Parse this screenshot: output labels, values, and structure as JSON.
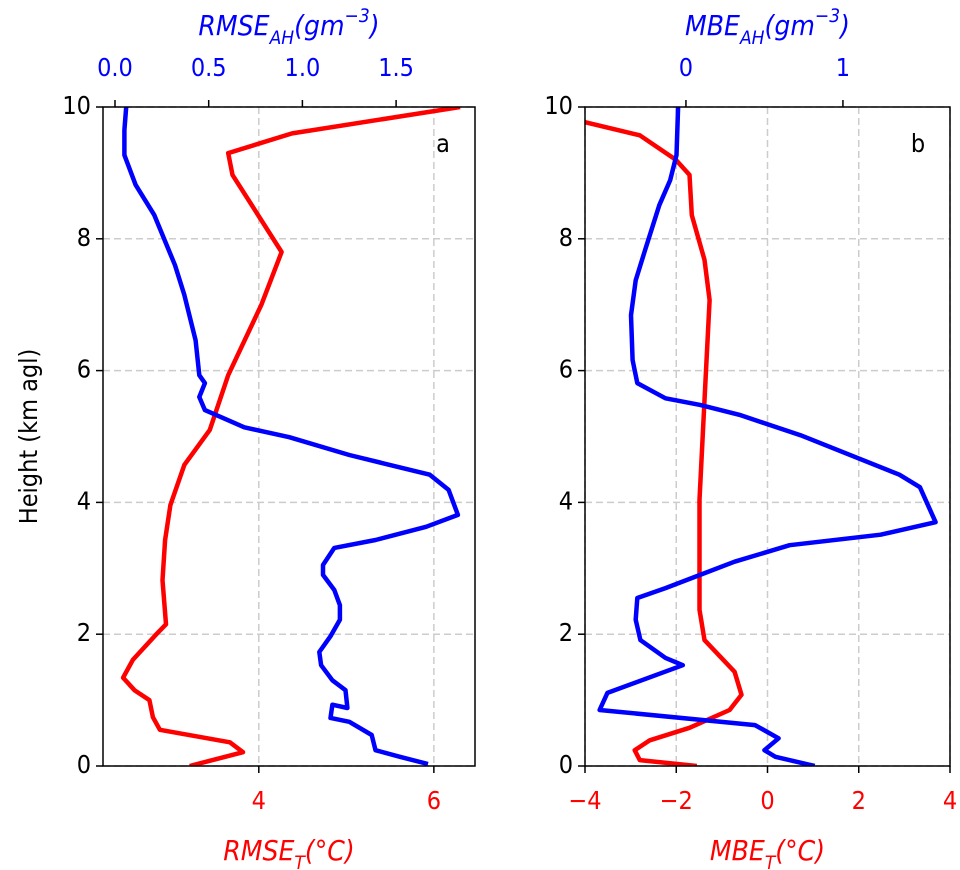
{
  "chart_data": [
    {
      "type": "line",
      "annotation": "a",
      "ylabel": "Height (km agl)",
      "xlabel": [
        "RMSE",
        "T",
        "(°C)"
      ],
      "x2label": [
        "RMSE",
        "AH",
        "(gm",
        "−3",
        ")"
      ],
      "xlim": [
        2.22,
        6.47
      ],
      "xticks": [
        4,
        6
      ],
      "x2lim": [
        -0.064,
        1.921
      ],
      "x2ticks": [
        {
          "value": 0,
          "label": "0.0"
        },
        0.5,
        {
          "value": 1,
          "label": "1.0"
        },
        1.5
      ],
      "ylim": [
        0,
        10
      ],
      "yticks": [
        0,
        2,
        4,
        6,
        8,
        10
      ],
      "grid": true,
      "series": [
        {
          "color": "#ff0000",
          "axis": "x",
          "y": [
            0,
            0.21,
            0.36,
            0.55,
            0.74,
            1.0,
            1.15,
            1.34,
            1.61,
            2.0,
            2.15,
            2.82,
            3.43,
            3.96,
            4.57,
            5.1,
            5.93,
            7.0,
            7.8,
            8.97,
            9.3,
            9.6,
            10
          ],
          "values": [
            3.21,
            3.82,
            3.67,
            2.87,
            2.79,
            2.75,
            2.58,
            2.45,
            2.56,
            2.83,
            2.94,
            2.9,
            2.93,
            2.99,
            3.15,
            3.44,
            3.65,
            4.03,
            4.26,
            3.7,
            3.65,
            4.38,
            6.3
          ]
        },
        {
          "color": "#0000ff",
          "axis": "x2",
          "y": [
            0.03,
            0.14,
            0.24,
            0.47,
            0.67,
            0.73,
            0.93,
            0.88,
            1.15,
            1.3,
            1.53,
            1.73,
            1.97,
            2.22,
            2.44,
            2.67,
            2.9,
            3.05,
            3.31,
            3.43,
            3.63,
            3.81,
            4.19,
            4.42,
            4.72,
            4.99,
            5.14,
            5.4,
            5.6,
            5.81,
            5.93,
            6.46,
            7.15,
            7.6,
            8.36,
            8.82,
            9.27,
            9.65,
            10
          ],
          "values": [
            1.67,
            1.52,
            1.39,
            1.37,
            1.25,
            1.15,
            1.16,
            1.24,
            1.23,
            1.16,
            1.1,
            1.09,
            1.15,
            1.2,
            1.2,
            1.17,
            1.11,
            1.11,
            1.17,
            1.39,
            1.66,
            1.83,
            1.78,
            1.68,
            1.25,
            0.93,
            0.69,
            0.48,
            0.45,
            0.48,
            0.45,
            0.43,
            0.37,
            0.32,
            0.21,
            0.11,
            0.05,
            0.05,
            0.06
          ]
        }
      ]
    },
    {
      "type": "line",
      "annotation": "b",
      "xlabel": [
        "MBE",
        "T",
        "(°C)"
      ],
      "x2label": [
        "MBE",
        "AH",
        "(gm",
        "−3",
        ")"
      ],
      "xlim": [
        -4,
        4
      ],
      "xticks": [
        {
          "value": -4,
          "label": "−4"
        },
        {
          "value": -2,
          "label": "−2"
        },
        0,
        2,
        4
      ],
      "x2lim": [
        -0.643,
        1.682
      ],
      "x2ticks": [
        0,
        1
      ],
      "ylim": [
        0,
        10
      ],
      "yticks": [
        0,
        2,
        4,
        6,
        8,
        10
      ],
      "grid": true,
      "series": [
        {
          "color": "#ff0000",
          "axis": "x",
          "y": [
            0,
            0.09,
            0.24,
            0.39,
            0.58,
            0.85,
            1.08,
            1.43,
            1.91,
            2.37,
            4.04,
            5.55,
            7.07,
            7.68,
            8.36,
            8.97,
            9.2,
            9.57,
            9.77
          ],
          "values": [
            -1.55,
            -2.8,
            -2.91,
            -2.58,
            -1.71,
            -0.83,
            -0.57,
            -0.72,
            -1.38,
            -1.49,
            -1.49,
            -1.38,
            -1.27,
            -1.38,
            -1.66,
            -1.71,
            -2.01,
            -2.8,
            -4.0
          ]
        },
        {
          "color": "#0000ff",
          "axis": "x2",
          "y": [
            0,
            0.14,
            0.24,
            0.42,
            0.62,
            0.85,
            1.11,
            1.53,
            1.64,
            1.91,
            2.22,
            2.55,
            2.7,
            2.9,
            3.1,
            3.35,
            3.51,
            3.7,
            4.23,
            4.42,
            5.02,
            5.33,
            5.48,
            5.58,
            5.81,
            6.16,
            6.84,
            7.37,
            7.83,
            8.51,
            8.89,
            9.27,
            10
          ],
          "values": [
            0.82,
            0.57,
            0.5,
            0.59,
            0.44,
            -0.55,
            -0.5,
            -0.02,
            -0.13,
            -0.29,
            -0.32,
            -0.31,
            -0.13,
            0.09,
            0.31,
            0.66,
            1.24,
            1.59,
            1.49,
            1.36,
            0.73,
            0.34,
            0.09,
            -0.13,
            -0.31,
            -0.34,
            -0.35,
            -0.32,
            -0.26,
            -0.17,
            -0.1,
            -0.06,
            -0.05
          ]
        }
      ]
    }
  ]
}
